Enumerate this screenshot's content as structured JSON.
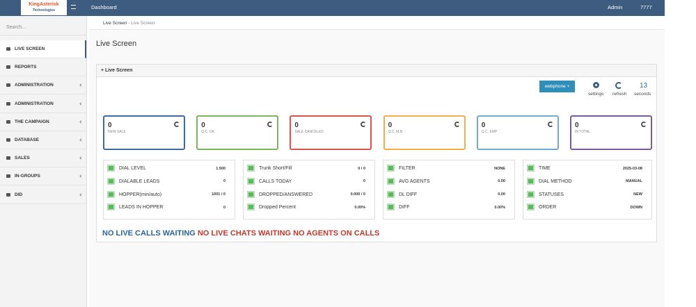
{
  "header": {
    "logo": "KingAsterisk",
    "logo_sub": "Technologies",
    "nav": "Dashboard",
    "user_menu": "Admin",
    "extension": "7777"
  },
  "sidebar": {
    "search": "Search...",
    "items": [
      "LIVE SCREEN",
      "REPORTS",
      "ADMINISTRATION",
      "ADMINISTRATION",
      "THE CAMPAIGN",
      "DATABASE",
      "SALES",
      "IN-GROUPS",
      "DID"
    ]
  },
  "breadcrumb": [
    "Live Screen",
    "Live Screen"
  ],
  "page_title": "Live Screen",
  "panel": {
    "title": "Live Screen",
    "webphone": "webphone +",
    "settings": "settings",
    "refresh": "refresh",
    "countdown": 13,
    "countdown_unit": "seconds",
    "cards": [
      {
        "value": 0,
        "label": "NEW SALE",
        "color": "#3b6a9c"
      },
      {
        "value": 0,
        "label": "Q.C. OK",
        "color": "#7db35a"
      },
      {
        "value": 0,
        "label": "SALE CANCELED",
        "color": "#d9534f"
      },
      {
        "value": 0,
        "label": "Q.C. M.B",
        "color": "#f0ad4e"
      },
      {
        "value": 0,
        "label": "Q.C. EMP",
        "color": "#72a9d6"
      },
      {
        "value": 0,
        "label": "IN TOTAL",
        "color": "#7a5a9c"
      }
    ],
    "stats": [
      [
        [
          "DIAL LEVEL",
          "1.500"
        ],
        [
          "DIALABLE LEADS",
          "0"
        ],
        [
          "HOPPER(min/auto)",
          "1001 / 0"
        ],
        [
          "LEADS IN HOPPER",
          "0"
        ]
      ],
      [
        [
          "Trunk Short/Fill",
          "0 / 0"
        ],
        [
          "CALLS TODAY",
          "0"
        ],
        [
          "DROPPED/ANSWERED",
          "0.000 / 0"
        ],
        [
          "Dropped Percent",
          "0.00%"
        ]
      ],
      [
        [
          "FILTER",
          "NONE"
        ],
        [
          "AVG AGENTS",
          "0.00"
        ],
        [
          "DL DIFF",
          "0.00"
        ],
        [
          "DIFF",
          "0.00%"
        ]
      ],
      [
        [
          "TIME",
          "2025-03-08"
        ],
        [
          "DIAL METHOD",
          "MANUAL"
        ],
        [
          "STATUSES",
          "NEW"
        ],
        [
          "ORDER",
          "DOWN"
        ]
      ]
    ],
    "status": [
      {
        "text": "NO LIVE CALLS WAITING",
        "color": "#2a6496"
      },
      {
        "text": "NO LIVE CHATS WAITING",
        "color": "#c0392b"
      },
      {
        "text": "NO AGENTS ON CALLS",
        "color": "#c0392b"
      }
    ]
  }
}
